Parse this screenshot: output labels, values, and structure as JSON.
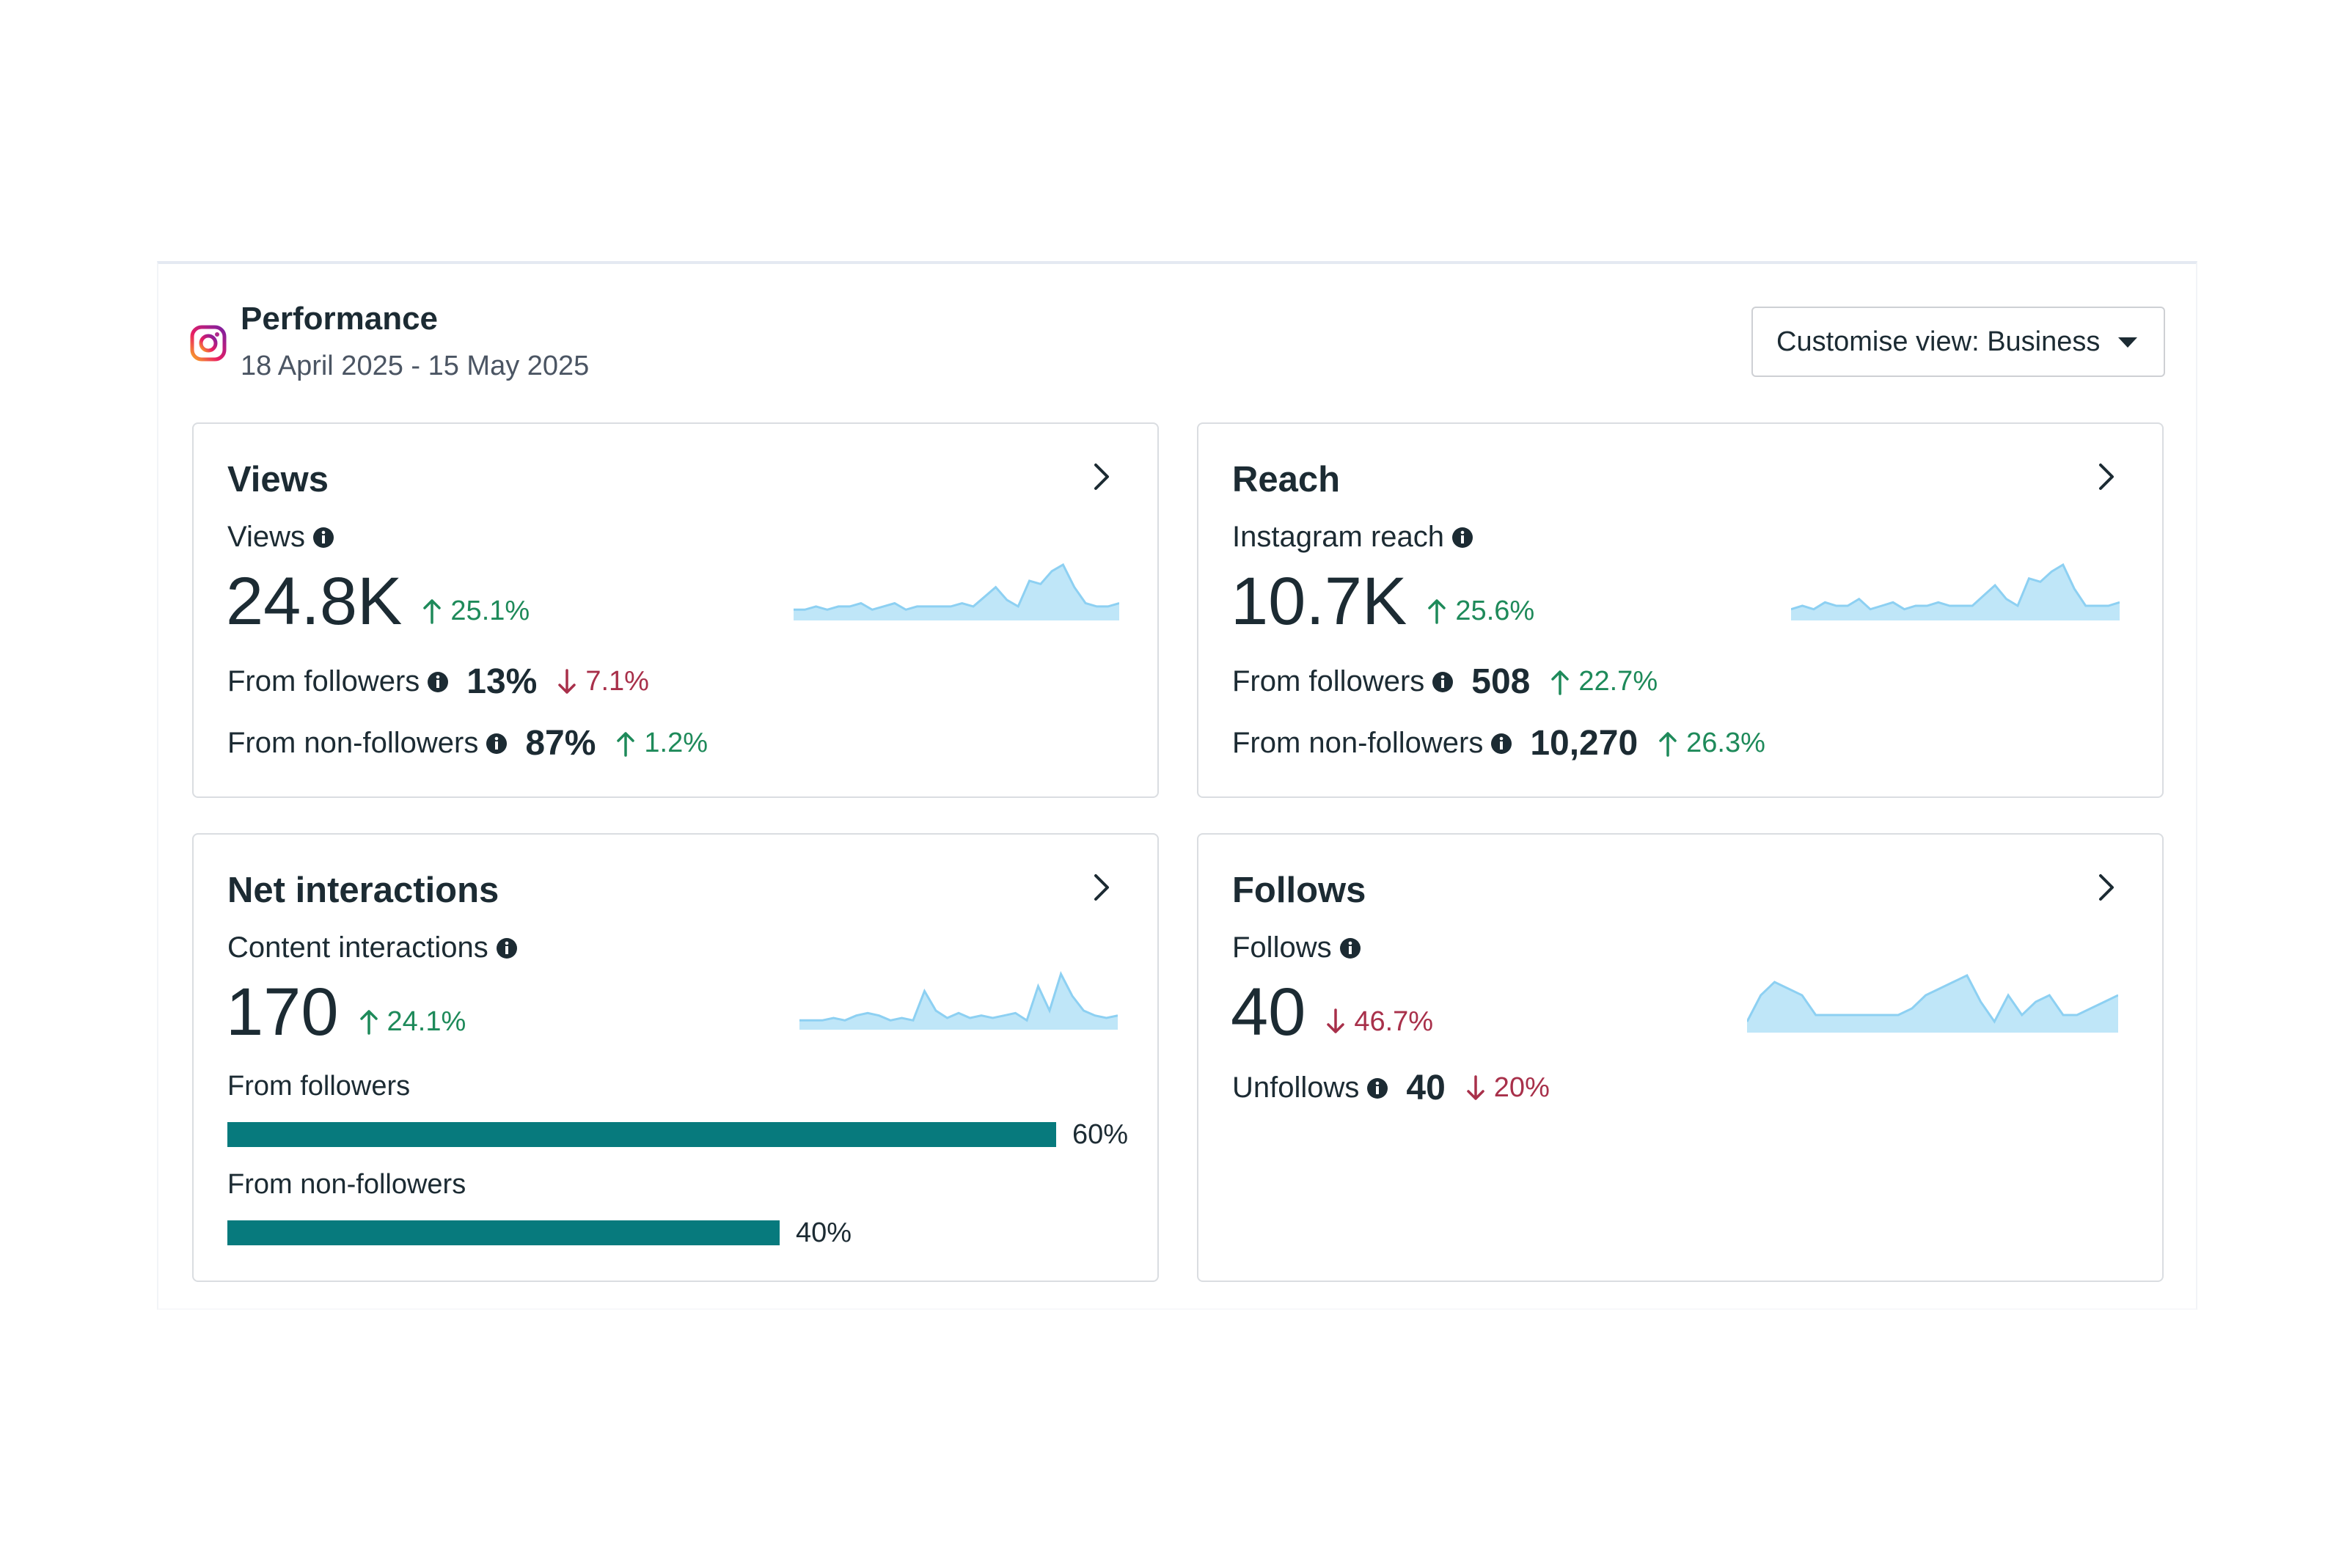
{
  "header": {
    "title": "Performance",
    "date_range": "18 April 2025 - 15 May 2025",
    "customise_label": "Customise view: Business",
    "platform_icon": "instagram-icon"
  },
  "colors": {
    "up": "#1e8a5a",
    "down": "#a8304a",
    "spark_fill": "#bfe6f8",
    "spark_line": "#8dd0f2",
    "bar": "#077a7d"
  },
  "cards": {
    "views": {
      "title": "Views",
      "metric_label": "Views",
      "value": "24.8K",
      "change": "25.1%",
      "direction": "up",
      "rows": [
        {
          "label": "From followers",
          "value": "13%",
          "change": "7.1%",
          "direction": "down"
        },
        {
          "label": "From non-followers",
          "value": "87%",
          "change": "1.2%",
          "direction": "up"
        }
      ]
    },
    "reach": {
      "title": "Reach",
      "metric_label": "Instagram reach",
      "value": "10.7K",
      "change": "25.6%",
      "direction": "up",
      "rows": [
        {
          "label": "From followers",
          "value": "508",
          "change": "22.7%",
          "direction": "up"
        },
        {
          "label": "From non-followers",
          "value": "10,270",
          "change": "26.3%",
          "direction": "up"
        }
      ]
    },
    "interactions": {
      "title": "Net interactions",
      "metric_label": "Content interactions",
      "value": "170",
      "change": "24.1%",
      "direction": "up",
      "bars": [
        {
          "label": "From followers",
          "percent_label": "60%",
          "fraction": 0.6
        },
        {
          "label": "From non-followers",
          "percent_label": "40%",
          "fraction": 0.4
        }
      ]
    },
    "follows": {
      "title": "Follows",
      "metric_label": "Follows",
      "value": "40",
      "change": "46.7%",
      "direction": "down",
      "rows": [
        {
          "label": "Unfollows",
          "value": "40",
          "change": "20%",
          "direction": "down"
        }
      ]
    }
  },
  "sparklines": {
    "views": [
      2,
      2,
      3,
      2,
      3,
      3,
      4,
      2,
      3,
      4,
      2,
      3,
      3,
      3,
      3,
      4,
      3,
      6,
      9,
      5,
      3,
      11,
      10,
      14,
      16,
      9,
      4,
      3,
      3,
      4
    ],
    "reach": [
      2,
      3,
      2,
      4,
      3,
      3,
      5,
      2,
      3,
      4,
      2,
      3,
      3,
      4,
      3,
      3,
      3,
      6,
      9,
      5,
      3,
      11,
      10,
      13,
      15,
      8,
      3,
      3,
      3,
      4
    ],
    "interactions": [
      2,
      2,
      2,
      3,
      2,
      4,
      5,
      4,
      2,
      3,
      2,
      14,
      6,
      3,
      5,
      3,
      4,
      3,
      4,
      5,
      2,
      16,
      6,
      21,
      12,
      6,
      4,
      3,
      4
    ],
    "follows": [
      1,
      5,
      7,
      6,
      5,
      2,
      2,
      2,
      2,
      2,
      2,
      2,
      3,
      5,
      6,
      7,
      8,
      4,
      1,
      5,
      2,
      4,
      5,
      2,
      2,
      3,
      4,
      5
    ]
  }
}
